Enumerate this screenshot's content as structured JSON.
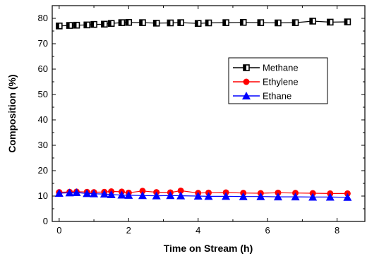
{
  "chart_data": {
    "type": "line",
    "title": "",
    "xlabel": "Time on Stream (h)",
    "ylabel": "Composition (%)",
    "xlim": [
      -0.2,
      8.8
    ],
    "ylim": [
      0,
      85
    ],
    "xticks": [
      0,
      2,
      4,
      6,
      8
    ],
    "yticks": [
      0,
      10,
      20,
      30,
      40,
      50,
      60,
      70,
      80
    ],
    "grid": false,
    "legend_position": "upper-right",
    "series": [
      {
        "name": "Methane",
        "color": "#000000",
        "marker": "square",
        "points": [
          [
            0.0,
            77.0
          ],
          [
            0.3,
            77.2
          ],
          [
            0.5,
            77.3
          ],
          [
            0.8,
            77.4
          ],
          [
            1.0,
            77.6
          ],
          [
            1.3,
            77.7
          ],
          [
            1.5,
            78.0
          ],
          [
            1.8,
            78.3
          ],
          [
            2.0,
            78.4
          ],
          [
            2.4,
            78.3
          ],
          [
            2.8,
            78.1
          ],
          [
            3.2,
            78.2
          ],
          [
            3.5,
            78.3
          ],
          [
            4.0,
            78.0
          ],
          [
            4.3,
            78.2
          ],
          [
            4.8,
            78.3
          ],
          [
            5.3,
            78.4
          ],
          [
            5.8,
            78.3
          ],
          [
            6.3,
            78.2
          ],
          [
            6.8,
            78.3
          ],
          [
            7.3,
            78.9
          ],
          [
            7.8,
            78.5
          ],
          [
            8.3,
            78.6
          ]
        ]
      },
      {
        "name": "Ethylene",
        "color": "#ff0000",
        "marker": "circle",
        "points": [
          [
            0.0,
            11.5
          ],
          [
            0.3,
            11.6
          ],
          [
            0.5,
            11.7
          ],
          [
            0.8,
            11.6
          ],
          [
            1.0,
            11.5
          ],
          [
            1.3,
            11.6
          ],
          [
            1.5,
            11.8
          ],
          [
            1.8,
            11.7
          ],
          [
            2.0,
            11.3
          ],
          [
            2.4,
            12.0
          ],
          [
            2.8,
            11.5
          ],
          [
            3.2,
            11.4
          ],
          [
            3.5,
            12.1
          ],
          [
            4.0,
            11.2
          ],
          [
            4.3,
            11.3
          ],
          [
            4.8,
            11.4
          ],
          [
            5.3,
            11.2
          ],
          [
            5.8,
            11.1
          ],
          [
            6.3,
            11.3
          ],
          [
            6.8,
            11.2
          ],
          [
            7.3,
            11.1
          ],
          [
            7.8,
            11.0
          ],
          [
            8.3,
            11.0
          ]
        ]
      },
      {
        "name": "Ethane",
        "color": "#0000ff",
        "marker": "triangle",
        "points": [
          [
            0.0,
            11.1
          ],
          [
            0.3,
            11.3
          ],
          [
            0.5,
            11.4
          ],
          [
            0.8,
            11.0
          ],
          [
            1.0,
            10.9
          ],
          [
            1.3,
            10.8
          ],
          [
            1.5,
            10.6
          ],
          [
            1.8,
            10.4
          ],
          [
            2.0,
            10.3
          ],
          [
            2.4,
            10.2
          ],
          [
            2.8,
            10.1
          ],
          [
            3.2,
            10.2
          ],
          [
            3.5,
            10.1
          ],
          [
            4.0,
            10.0
          ],
          [
            4.3,
            9.9
          ],
          [
            4.8,
            9.9
          ],
          [
            5.3,
            9.8
          ],
          [
            5.8,
            9.8
          ],
          [
            6.3,
            9.7
          ],
          [
            6.8,
            9.7
          ],
          [
            7.3,
            9.6
          ],
          [
            7.8,
            9.6
          ],
          [
            8.3,
            9.5
          ]
        ]
      }
    ]
  }
}
